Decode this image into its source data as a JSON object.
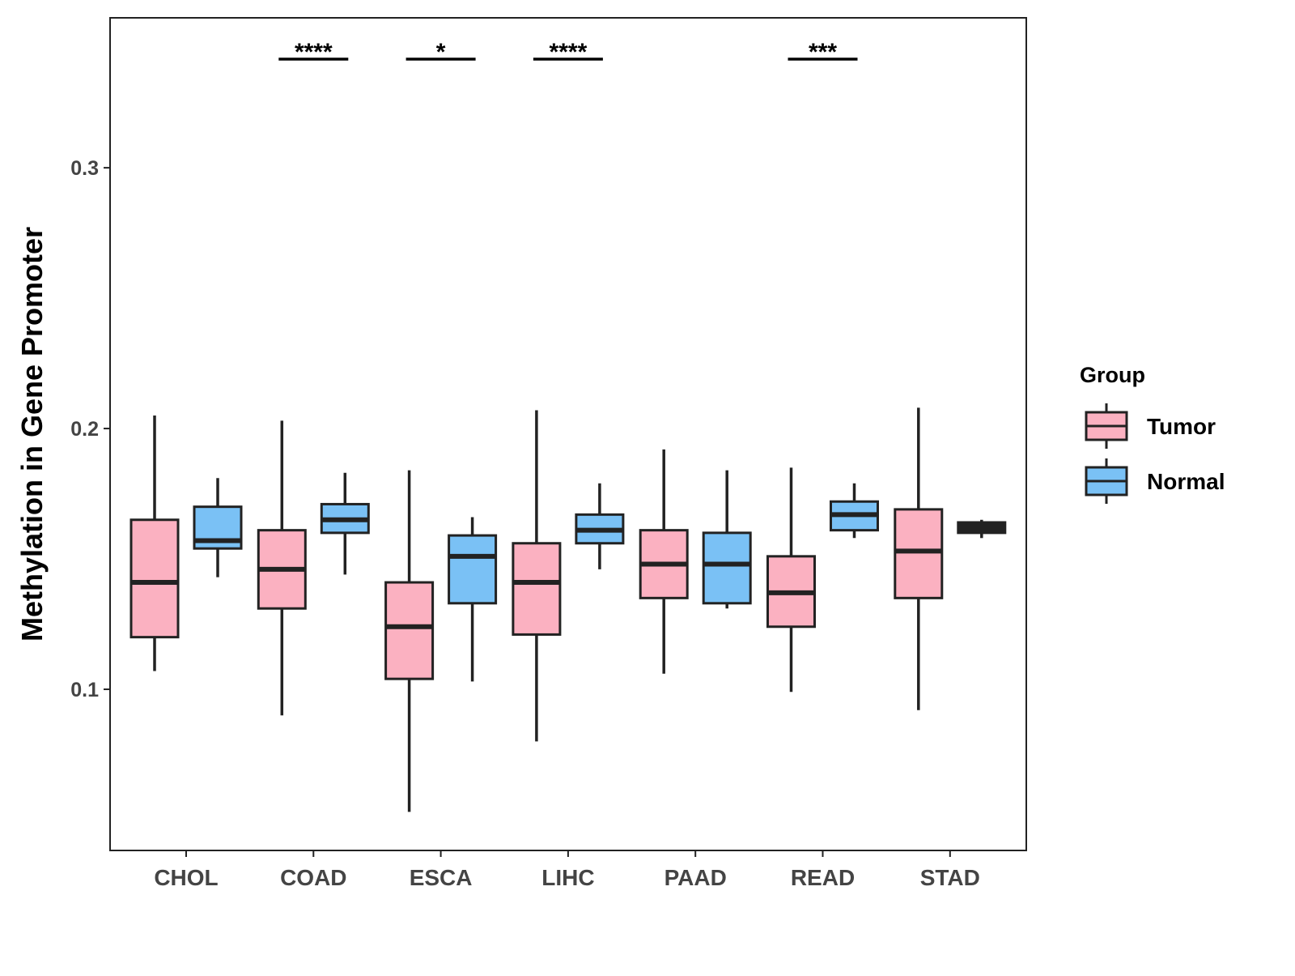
{
  "chart_data": {
    "type": "box",
    "ylabel": "Methylation in Gene Promoter",
    "xlabel": "",
    "ylim": [
      0.0382,
      0.3575
    ],
    "yticks": [
      0.1,
      0.2,
      0.3
    ],
    "ytick_labels": [
      "0.1",
      "0.2",
      "0.3"
    ],
    "grid": false,
    "categories": [
      "CHOL",
      "COAD",
      "ESCA",
      "LIHC",
      "PAAD",
      "READ",
      "STAD"
    ],
    "legend": {
      "title": "Group",
      "placement": "right",
      "entries": [
        {
          "name": "Tumor",
          "color": "#FBB1C1"
        },
        {
          "name": "Normal",
          "color": "#7AC1F5"
        }
      ]
    },
    "series": [
      {
        "name": "Tumor",
        "color": "#FBB1C1",
        "boxes": [
          {
            "whisker_low": 0.107,
            "q1": 0.12,
            "median": 0.141,
            "q3": 0.165,
            "whisker_high": 0.205
          },
          {
            "whisker_low": 0.09,
            "q1": 0.131,
            "median": 0.146,
            "q3": 0.161,
            "whisker_high": 0.203
          },
          {
            "whisker_low": 0.053,
            "q1": 0.104,
            "median": 0.124,
            "q3": 0.141,
            "whisker_high": 0.184
          },
          {
            "whisker_low": 0.08,
            "q1": 0.121,
            "median": 0.141,
            "q3": 0.156,
            "whisker_high": 0.207
          },
          {
            "whisker_low": 0.106,
            "q1": 0.135,
            "median": 0.148,
            "q3": 0.161,
            "whisker_high": 0.192
          },
          {
            "whisker_low": 0.099,
            "q1": 0.124,
            "median": 0.137,
            "q3": 0.151,
            "whisker_high": 0.185
          },
          {
            "whisker_low": 0.092,
            "q1": 0.135,
            "median": 0.153,
            "q3": 0.169,
            "whisker_high": 0.208
          }
        ]
      },
      {
        "name": "Normal",
        "color": "#7AC1F5",
        "boxes": [
          {
            "whisker_low": 0.143,
            "q1": 0.154,
            "median": 0.157,
            "q3": 0.17,
            "whisker_high": 0.181
          },
          {
            "whisker_low": 0.144,
            "q1": 0.16,
            "median": 0.165,
            "q3": 0.171,
            "whisker_high": 0.183
          },
          {
            "whisker_low": 0.103,
            "q1": 0.133,
            "median": 0.151,
            "q3": 0.159,
            "whisker_high": 0.166
          },
          {
            "whisker_low": 0.146,
            "q1": 0.156,
            "median": 0.161,
            "q3": 0.167,
            "whisker_high": 0.179
          },
          {
            "whisker_low": 0.131,
            "q1": 0.133,
            "median": 0.148,
            "q3": 0.16,
            "whisker_high": 0.184
          },
          {
            "whisker_low": 0.158,
            "q1": 0.161,
            "median": 0.167,
            "q3": 0.172,
            "whisker_high": 0.179
          },
          {
            "whisker_low": 0.158,
            "q1": 0.16,
            "median": 0.162,
            "q3": 0.164,
            "whisker_high": 0.165
          }
        ]
      }
    ],
    "annotations": [
      {
        "category": "COAD",
        "label": "****"
      },
      {
        "category": "ESCA",
        "label": "*"
      },
      {
        "category": "LIHC",
        "label": "****"
      },
      {
        "category": "READ",
        "label": "***"
      }
    ]
  }
}
